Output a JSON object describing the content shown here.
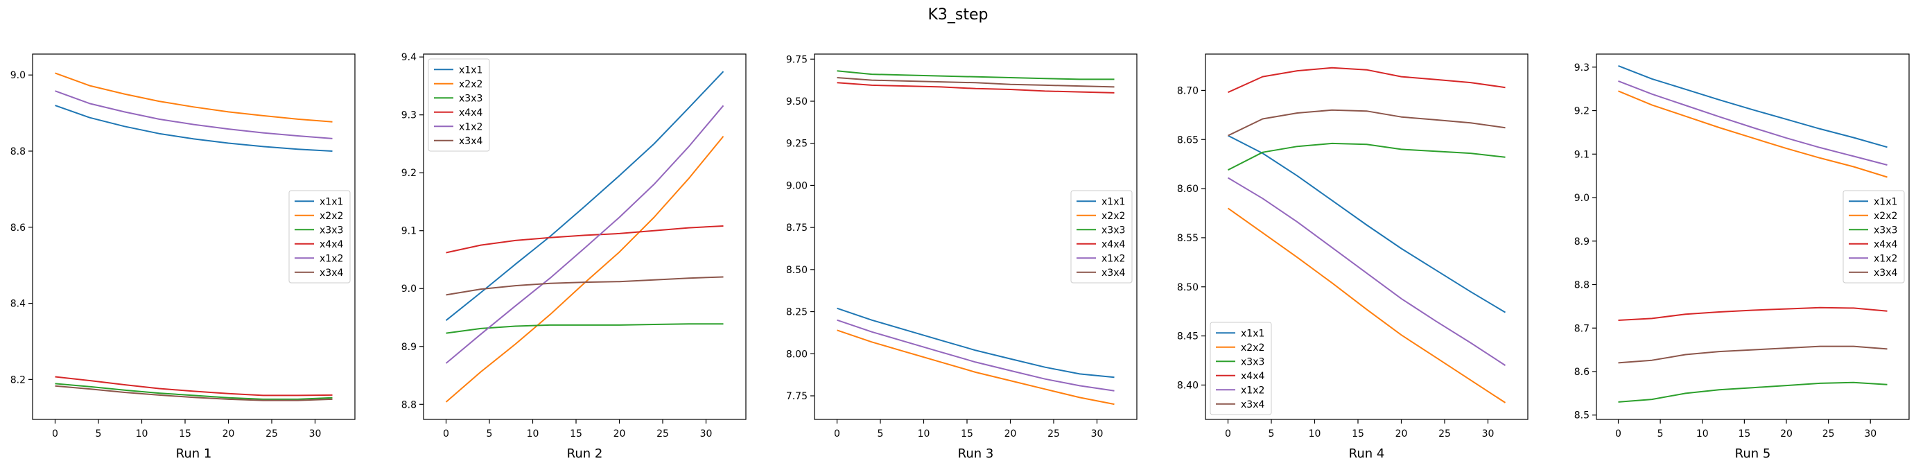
{
  "figure": {
    "title": "K3_step"
  },
  "colors": {
    "x1x1": "#1f77b4",
    "x2x2": "#ff7f0e",
    "x3x3": "#2ca02c",
    "x4x4": "#d62728",
    "x1x2": "#9467bd",
    "x3x4": "#8c564b"
  },
  "chart_data": [
    {
      "type": "line",
      "xlabel": "Run 1",
      "ylabel": "",
      "xlim": [
        -2.6,
        34.6
      ],
      "ylim": [
        8.095,
        9.055
      ],
      "xticks": [
        0,
        5,
        10,
        15,
        20,
        25,
        30
      ],
      "yticks": [
        8.2,
        8.4,
        8.6,
        8.8,
        9.0
      ],
      "ytick_labels": [
        "8.2",
        "8.4",
        "8.6",
        "8.8",
        "9.0"
      ],
      "legend_loc": "center right",
      "x": [
        0,
        4,
        8,
        12,
        16,
        20,
        24,
        28,
        32
      ],
      "series": [
        {
          "name": "x1x1",
          "values": [
            8.92,
            8.888,
            8.865,
            8.846,
            8.832,
            8.821,
            8.812,
            8.805,
            8.8
          ]
        },
        {
          "name": "x2x2",
          "values": [
            9.005,
            8.972,
            8.95,
            8.931,
            8.916,
            8.903,
            8.893,
            8.884,
            8.877
          ]
        },
        {
          "name": "x3x3",
          "values": [
            8.189,
            8.181,
            8.172,
            8.164,
            8.158,
            8.152,
            8.148,
            8.148,
            8.152
          ]
        },
        {
          "name": "x4x4",
          "values": [
            8.207,
            8.197,
            8.186,
            8.176,
            8.169,
            8.163,
            8.158,
            8.158,
            8.159
          ]
        },
        {
          "name": "x1x2",
          "values": [
            8.958,
            8.925,
            8.903,
            8.884,
            8.87,
            8.858,
            8.848,
            8.84,
            8.833
          ]
        },
        {
          "name": "x3x4",
          "values": [
            8.183,
            8.175,
            8.166,
            8.159,
            8.153,
            8.148,
            8.145,
            8.145,
            8.148
          ]
        }
      ]
    },
    {
      "type": "line",
      "xlabel": "Run 2",
      "ylabel": "",
      "xlim": [
        -2.6,
        34.6
      ],
      "ylim": [
        8.774,
        9.405
      ],
      "xticks": [
        0,
        5,
        10,
        15,
        20,
        25,
        30
      ],
      "yticks": [
        8.8,
        8.9,
        9.0,
        9.1,
        9.2,
        9.3,
        9.4
      ],
      "ytick_labels": [
        "8.8",
        "8.9",
        "9.0",
        "9.1",
        "9.2",
        "9.3",
        "9.4"
      ],
      "legend_loc": "upper left",
      "x": [
        0,
        4,
        8,
        12,
        16,
        20,
        24,
        28,
        32
      ],
      "series": [
        {
          "name": "x1x1",
          "values": [
            8.945,
            8.993,
            9.042,
            9.09,
            9.142,
            9.195,
            9.25,
            9.312,
            9.375
          ]
        },
        {
          "name": "x2x2",
          "values": [
            8.804,
            8.856,
            8.904,
            8.955,
            9.01,
            9.063,
            9.123,
            9.19,
            9.263
          ]
        },
        {
          "name": "x3x3",
          "values": [
            8.923,
            8.931,
            8.935,
            8.937,
            8.937,
            8.937,
            8.938,
            8.939,
            8.939
          ]
        },
        {
          "name": "x4x4",
          "values": [
            9.062,
            9.075,
            9.083,
            9.088,
            9.092,
            9.095,
            9.1,
            9.105,
            9.108
          ]
        },
        {
          "name": "x1x2",
          "values": [
            8.871,
            8.921,
            8.97,
            9.018,
            9.07,
            9.123,
            9.18,
            9.245,
            9.316
          ]
        },
        {
          "name": "x3x4",
          "values": [
            8.989,
            8.999,
            9.005,
            9.009,
            9.011,
            9.012,
            9.015,
            9.018,
            9.02
          ]
        }
      ]
    },
    {
      "type": "line",
      "xlabel": "Run 3",
      "ylabel": "",
      "xlim": [
        -2.6,
        34.6
      ],
      "ylim": [
        7.61,
        9.78
      ],
      "xticks": [
        0,
        5,
        10,
        15,
        20,
        25,
        30
      ],
      "yticks": [
        7.75,
        8.0,
        8.25,
        8.5,
        8.75,
        9.0,
        9.25,
        9.5,
        9.75
      ],
      "ytick_labels": [
        "7.75",
        "8.00",
        "8.25",
        "8.50",
        "8.75",
        "9.00",
        "9.25",
        "9.50",
        "9.75"
      ],
      "legend_loc": "center right",
      "x": [
        0,
        4,
        8,
        12,
        16,
        20,
        24,
        28,
        32
      ],
      "series": [
        {
          "name": "x1x1",
          "values": [
            8.27,
            8.2,
            8.14,
            8.08,
            8.02,
            7.97,
            7.92,
            7.88,
            7.86
          ]
        },
        {
          "name": "x2x2",
          "values": [
            8.14,
            8.07,
            8.01,
            7.95,
            7.89,
            7.84,
            7.79,
            7.74,
            7.7
          ]
        },
        {
          "name": "x3x3",
          "values": [
            9.68,
            9.66,
            9.655,
            9.65,
            9.645,
            9.64,
            9.635,
            9.63,
            9.63
          ]
        },
        {
          "name": "x4x4",
          "values": [
            9.61,
            9.595,
            9.59,
            9.585,
            9.575,
            9.57,
            9.56,
            9.555,
            9.55
          ]
        },
        {
          "name": "x1x2",
          "values": [
            8.2,
            8.13,
            8.07,
            8.01,
            7.95,
            7.9,
            7.85,
            7.81,
            7.78
          ]
        },
        {
          "name": "x3x4",
          "values": [
            9.64,
            9.625,
            9.62,
            9.615,
            9.61,
            9.6,
            9.595,
            9.59,
            9.585
          ]
        }
      ]
    },
    {
      "type": "line",
      "xlabel": "Run 4",
      "ylabel": "",
      "xlim": [
        -2.6,
        34.6
      ],
      "ylim": [
        8.365,
        8.737
      ],
      "xticks": [
        0,
        5,
        10,
        15,
        20,
        25,
        30
      ],
      "yticks": [
        8.4,
        8.45,
        8.5,
        8.55,
        8.6,
        8.65,
        8.7
      ],
      "ytick_labels": [
        "8.40",
        "8.45",
        "8.50",
        "8.55",
        "8.60",
        "8.65",
        "8.70"
      ],
      "legend_loc": "lower left",
      "x": [
        0,
        4,
        8,
        12,
        16,
        20,
        24,
        28,
        32
      ],
      "series": [
        {
          "name": "x1x1",
          "values": [
            8.654,
            8.636,
            8.613,
            8.588,
            8.563,
            8.539,
            8.517,
            8.495,
            8.474
          ]
        },
        {
          "name": "x2x2",
          "values": [
            8.58,
            8.555,
            8.53,
            8.504,
            8.477,
            8.451,
            8.428,
            8.405,
            8.382
          ]
        },
        {
          "name": "x3x3",
          "values": [
            8.619,
            8.637,
            8.643,
            8.646,
            8.645,
            8.64,
            8.638,
            8.636,
            8.632
          ]
        },
        {
          "name": "x4x4",
          "values": [
            8.698,
            8.714,
            8.72,
            8.723,
            8.721,
            8.714,
            8.711,
            8.708,
            8.703
          ]
        },
        {
          "name": "x1x2",
          "values": [
            8.611,
            8.59,
            8.566,
            8.54,
            8.514,
            8.488,
            8.465,
            8.443,
            8.42
          ]
        },
        {
          "name": "x3x4",
          "values": [
            8.654,
            8.671,
            8.677,
            8.68,
            8.679,
            8.673,
            8.67,
            8.667,
            8.662
          ]
        }
      ]
    },
    {
      "type": "line",
      "xlabel": "Run 5",
      "ylabel": "",
      "xlim": [
        -2.6,
        34.6
      ],
      "ylim": [
        8.49,
        9.33
      ],
      "xticks": [
        0,
        5,
        10,
        15,
        20,
        25,
        30
      ],
      "yticks": [
        8.5,
        8.6,
        8.7,
        8.8,
        8.9,
        9.0,
        9.1,
        9.2,
        9.3
      ],
      "ytick_labels": [
        "8.5",
        "8.6",
        "8.7",
        "8.8",
        "8.9",
        "9.0",
        "9.1",
        "9.2",
        "9.3"
      ],
      "legend_loc": "center right",
      "x": [
        0,
        4,
        8,
        12,
        16,
        20,
        24,
        28,
        32
      ],
      "series": [
        {
          "name": "x1x1",
          "values": [
            9.303,
            9.273,
            9.249,
            9.225,
            9.202,
            9.18,
            9.158,
            9.138,
            9.116
          ]
        },
        {
          "name": "x2x2",
          "values": [
            9.245,
            9.213,
            9.187,
            9.161,
            9.137,
            9.113,
            9.091,
            9.071,
            9.047
          ]
        },
        {
          "name": "x3x3",
          "values": [
            8.53,
            8.536,
            8.55,
            8.558,
            8.563,
            8.568,
            8.573,
            8.575,
            8.57
          ]
        },
        {
          "name": "x4x4",
          "values": [
            8.718,
            8.722,
            8.732,
            8.737,
            8.741,
            8.744,
            8.747,
            8.746,
            8.739
          ]
        },
        {
          "name": "x1x2",
          "values": [
            9.268,
            9.238,
            9.212,
            9.186,
            9.161,
            9.137,
            9.115,
            9.095,
            9.075
          ]
        },
        {
          "name": "x3x4",
          "values": [
            8.62,
            8.626,
            8.639,
            8.646,
            8.65,
            8.654,
            8.658,
            8.658,
            8.652
          ]
        }
      ]
    }
  ]
}
